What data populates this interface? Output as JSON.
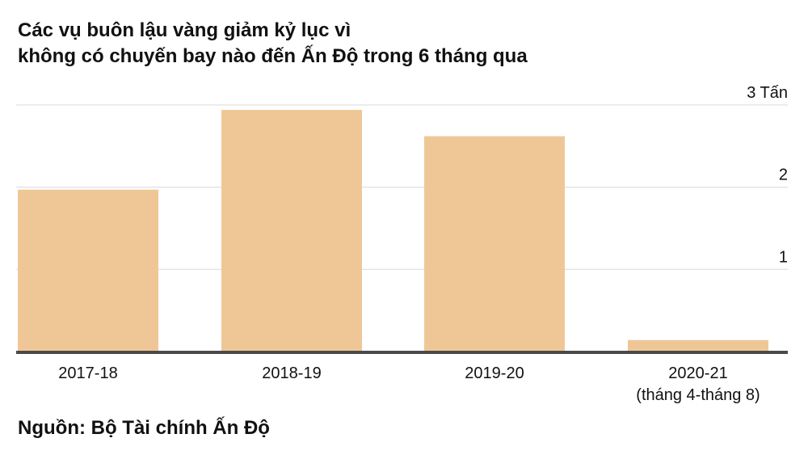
{
  "title": {
    "line1": "Các vụ buôn lậu vàng giảm kỷ lục vì",
    "line2": "không có chuyến bay nào đến Ấn Độ trong 6 tháng qua"
  },
  "source": "Nguồn: Bộ Tài chính Ấn Độ",
  "colors": {
    "bar": "#efc797",
    "grid": "#d9d9d9",
    "axis": "#4a4a4a",
    "text": "#111111"
  },
  "chart_data": {
    "type": "bar",
    "title": "Các vụ buôn lậu vàng giảm kỷ lục vì không có chuyến bay nào đến Ấn Độ trong 6 tháng qua",
    "categories": [
      [
        "2017-18"
      ],
      [
        "2018-19"
      ],
      [
        "2019-20"
      ],
      [
        "2020-21",
        "(tháng 4-tháng 8)"
      ]
    ],
    "values": [
      1.97,
      2.94,
      2.62,
      0.14
    ],
    "ylim": [
      0,
      3
    ],
    "yticks": [
      {
        "value": 1,
        "label": "1"
      },
      {
        "value": 2,
        "label": "2"
      },
      {
        "value": 3,
        "label": "3 Tấn"
      }
    ],
    "xlabel": "",
    "ylabel": "",
    "grid": true,
    "ytick_position": "right"
  }
}
